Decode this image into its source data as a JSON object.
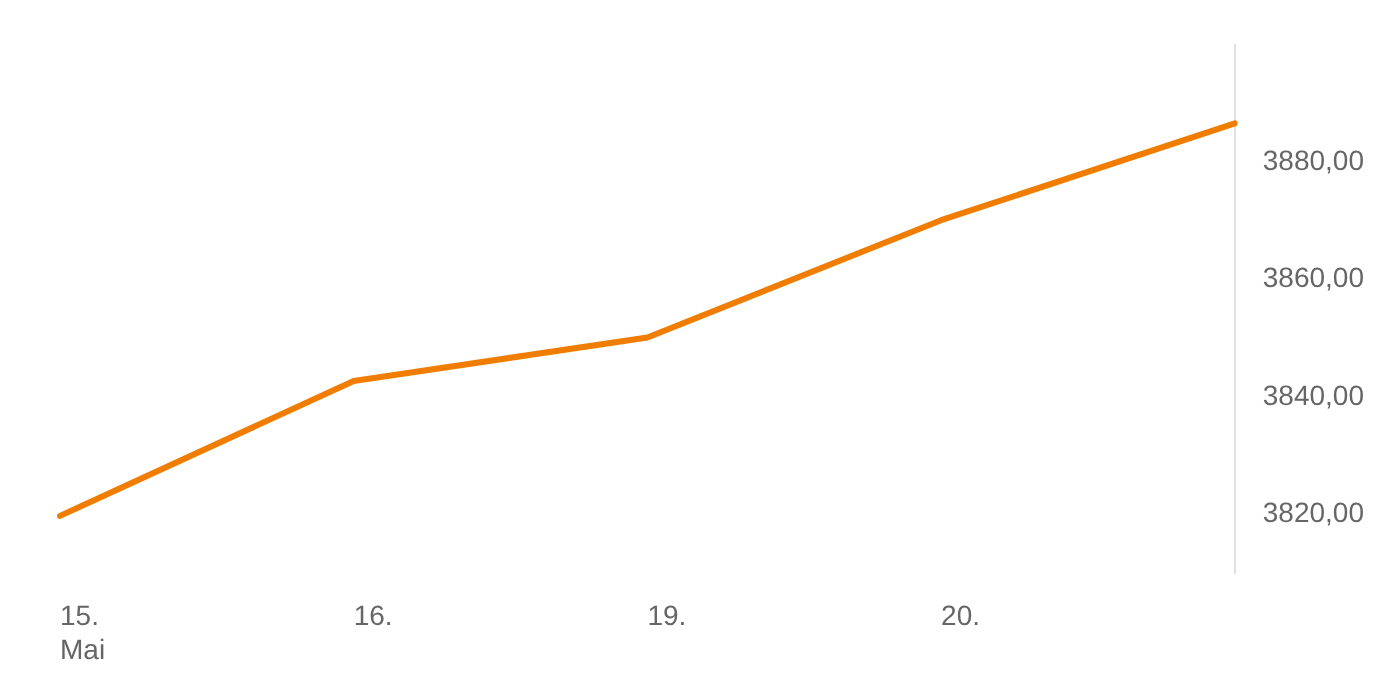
{
  "chart_data": {
    "type": "line",
    "categories": [
      "15.\nMai",
      "16.",
      "19.",
      "20.",
      null
    ],
    "series": [
      {
        "color": "#f07d00",
        "values": [
          3819.7,
          3842.7,
          3850.1,
          3870.1,
          3886.6
        ]
      }
    ],
    "ylim": [
      3810,
      3900
    ],
    "yticks": [
      {
        "value": 3820,
        "label": "3820,00"
      },
      {
        "value": 3840,
        "label": "3840,00"
      },
      {
        "value": 3860,
        "label": "3860,00"
      },
      {
        "value": 3880,
        "label": "3880,00"
      }
    ],
    "grid": false,
    "legend": false,
    "marker": "none",
    "line_style": "solid"
  }
}
